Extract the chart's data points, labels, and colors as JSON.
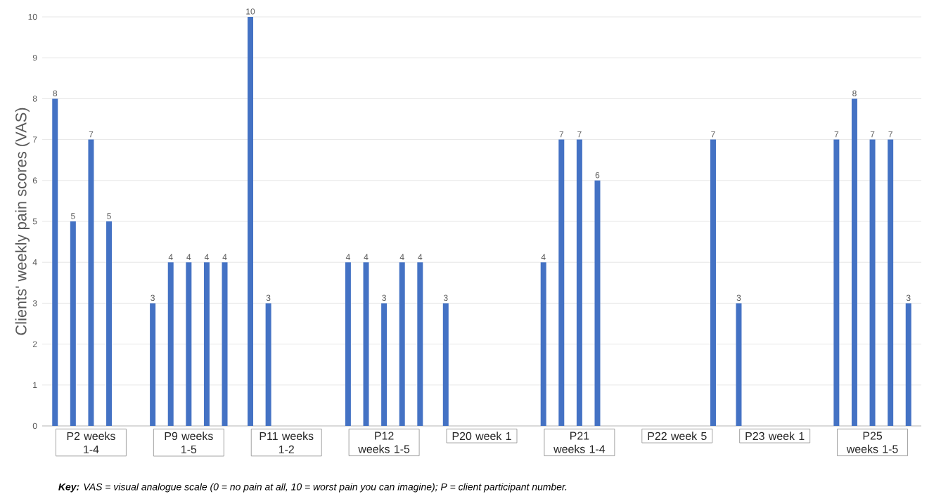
{
  "chart_data": {
    "type": "bar",
    "ylabel": "Clients' weekly pain scores (VAS)",
    "categories": [
      "P2 weeks 1-4",
      "P9 weeks 1-5",
      "P11 weeks 1-2",
      "P12 weeks 1-5",
      "P20 week 1",
      "P21 weeks 1-4",
      "P22 week 5",
      "P23 week 1",
      "P25 weeks 1-5"
    ],
    "series": [
      {
        "color": "#4472c4",
        "values": [
          8,
          3,
          10,
          4,
          3,
          4,
          null,
          3,
          7
        ]
      },
      {
        "color": "#4472c4",
        "values": [
          5,
          4,
          3,
          4,
          null,
          7,
          null,
          null,
          8
        ]
      },
      {
        "color": "#4472c4",
        "values": [
          7,
          4,
          null,
          3,
          null,
          7,
          null,
          null,
          7
        ]
      },
      {
        "color": "#4472c4",
        "values": [
          5,
          4,
          null,
          4,
          null,
          6,
          null,
          null,
          7
        ]
      },
      {
        "color": "#4472c4",
        "values": [
          null,
          4,
          null,
          4,
          null,
          null,
          7,
          null,
          3
        ]
      }
    ],
    "ylim": [
      0,
      10
    ],
    "yticks": [
      0,
      1,
      2,
      3,
      4,
      5,
      6,
      7,
      8,
      9,
      10
    ],
    "grid": "y",
    "data_labels": true,
    "annotations": [
      "**Key:** VAS = visual analogue scale (0 = no pain at all, 10 = worst pain you can imagine); P = client participant number."
    ]
  }
}
